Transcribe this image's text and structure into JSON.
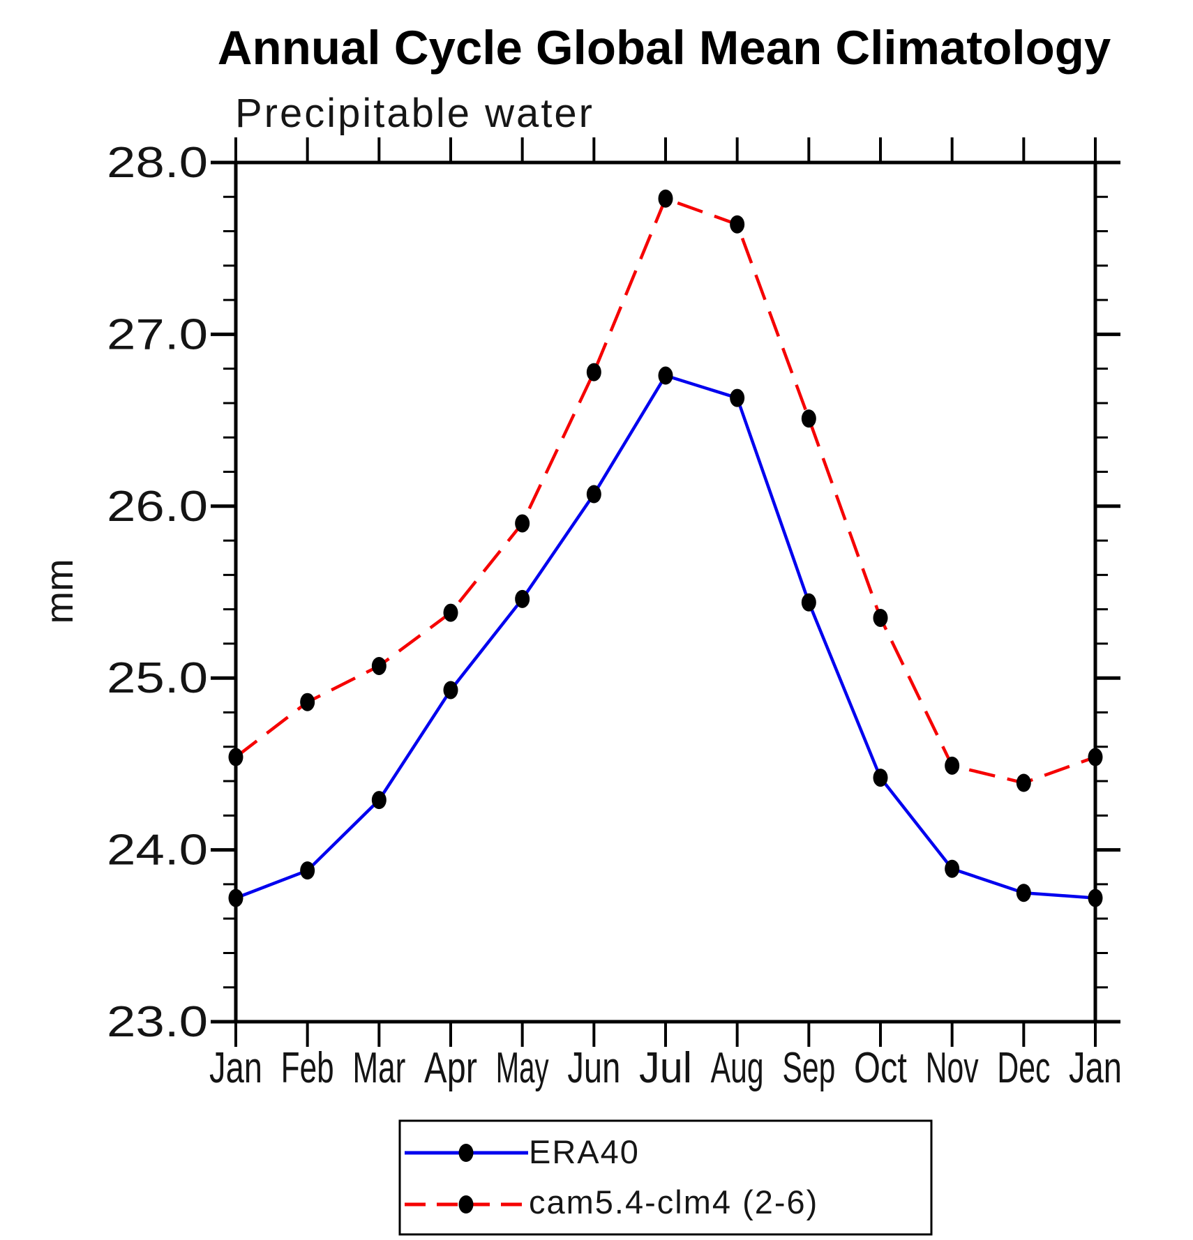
{
  "title": "Annual Cycle Global Mean Climatology",
  "subtitle": "Precipitable water",
  "y_axis": {
    "label": "mm",
    "min": 23.0,
    "max": 28.0,
    "major_tick_labels": [
      "23.0",
      "24.0",
      "25.0",
      "26.0",
      "27.0",
      "28.0"
    ],
    "minor_step": 0.2
  },
  "x_axis": {
    "tick_labels": [
      "Jan",
      "Feb",
      "Mar",
      "Apr",
      "May",
      "Jun",
      "Jul",
      "Aug",
      "Sep",
      "Oct",
      "Nov",
      "Dec",
      "Jan"
    ]
  },
  "legend": [
    {
      "label": "ERA40",
      "color": "#0000ee",
      "line_style": "solid",
      "marker": "filled-circle"
    },
    {
      "label": "cam5.4-clm4 (2-6)",
      "color": "#f50000",
      "line_style": "dashed",
      "marker": "filled-circle"
    }
  ],
  "colors": {
    "era40_line": "#0000ee",
    "cam_line": "#f50000",
    "marker": "#000000",
    "axis": "#000000",
    "background": "#ffffff"
  },
  "chart_data": {
    "type": "line",
    "title": "Annual Cycle Global Mean Climatology",
    "subtitle": "Precipitable water",
    "ylabel": "mm",
    "xlabel": "",
    "ylim": [
      23.0,
      28.0
    ],
    "y_major_step": 1.0,
    "y_minor_step": 0.2,
    "grid": false,
    "legend_position": "bottom-center",
    "categories": [
      "Jan",
      "Feb",
      "Mar",
      "Apr",
      "May",
      "Jun",
      "Jul",
      "Aug",
      "Sep",
      "Oct",
      "Nov",
      "Dec",
      "Jan"
    ],
    "series": [
      {
        "name": "ERA40",
        "color": "#0000ee",
        "line_style": "solid",
        "marker": "filled-circle",
        "values": [
          23.72,
          23.88,
          24.29,
          24.93,
          25.46,
          26.07,
          26.76,
          26.63,
          25.44,
          24.42,
          23.89,
          23.75,
          23.72
        ]
      },
      {
        "name": "cam5.4-clm4 (2-6)",
        "color": "#f50000",
        "line_style": "dashed",
        "marker": "filled-circle",
        "values": [
          24.54,
          24.86,
          25.07,
          25.38,
          25.9,
          26.78,
          27.79,
          27.64,
          26.51,
          25.35,
          24.49,
          24.39,
          24.54
        ]
      }
    ]
  }
}
